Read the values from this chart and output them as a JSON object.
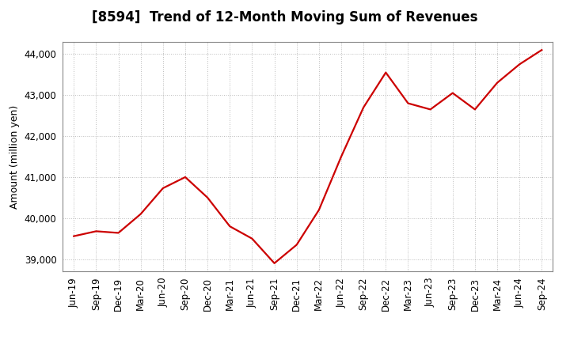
{
  "title": "[8594]  Trend of 12-Month Moving Sum of Revenues",
  "ylabel": "Amount (million yen)",
  "line_color": "#cc0000",
  "background_color": "#ffffff",
  "plot_bg_color": "#ffffff",
  "grid_color": "#bbbbbb",
  "x_labels": [
    "Jun-19",
    "Sep-19",
    "Dec-19",
    "Mar-20",
    "Jun-20",
    "Sep-20",
    "Dec-20",
    "Mar-21",
    "Jun-21",
    "Sep-21",
    "Dec-21",
    "Mar-22",
    "Jun-22",
    "Sep-22",
    "Dec-22",
    "Mar-23",
    "Jun-23",
    "Sep-23",
    "Dec-23",
    "Mar-24",
    "Jun-24",
    "Sep-24"
  ],
  "values": [
    39560,
    39680,
    39640,
    40100,
    40730,
    41000,
    40500,
    39800,
    39500,
    38900,
    39350,
    40200,
    41500,
    42700,
    43550,
    42800,
    42650,
    43050,
    42650,
    43300,
    43750,
    44100
  ],
  "ylim": [
    38700,
    44300
  ],
  "yticks": [
    39000,
    40000,
    41000,
    42000,
    43000,
    44000
  ],
  "figsize": [
    7.2,
    4.4
  ],
  "dpi": 100,
  "title_fontsize": 12,
  "ylabel_fontsize": 9,
  "tick_fontsize": 8.5
}
